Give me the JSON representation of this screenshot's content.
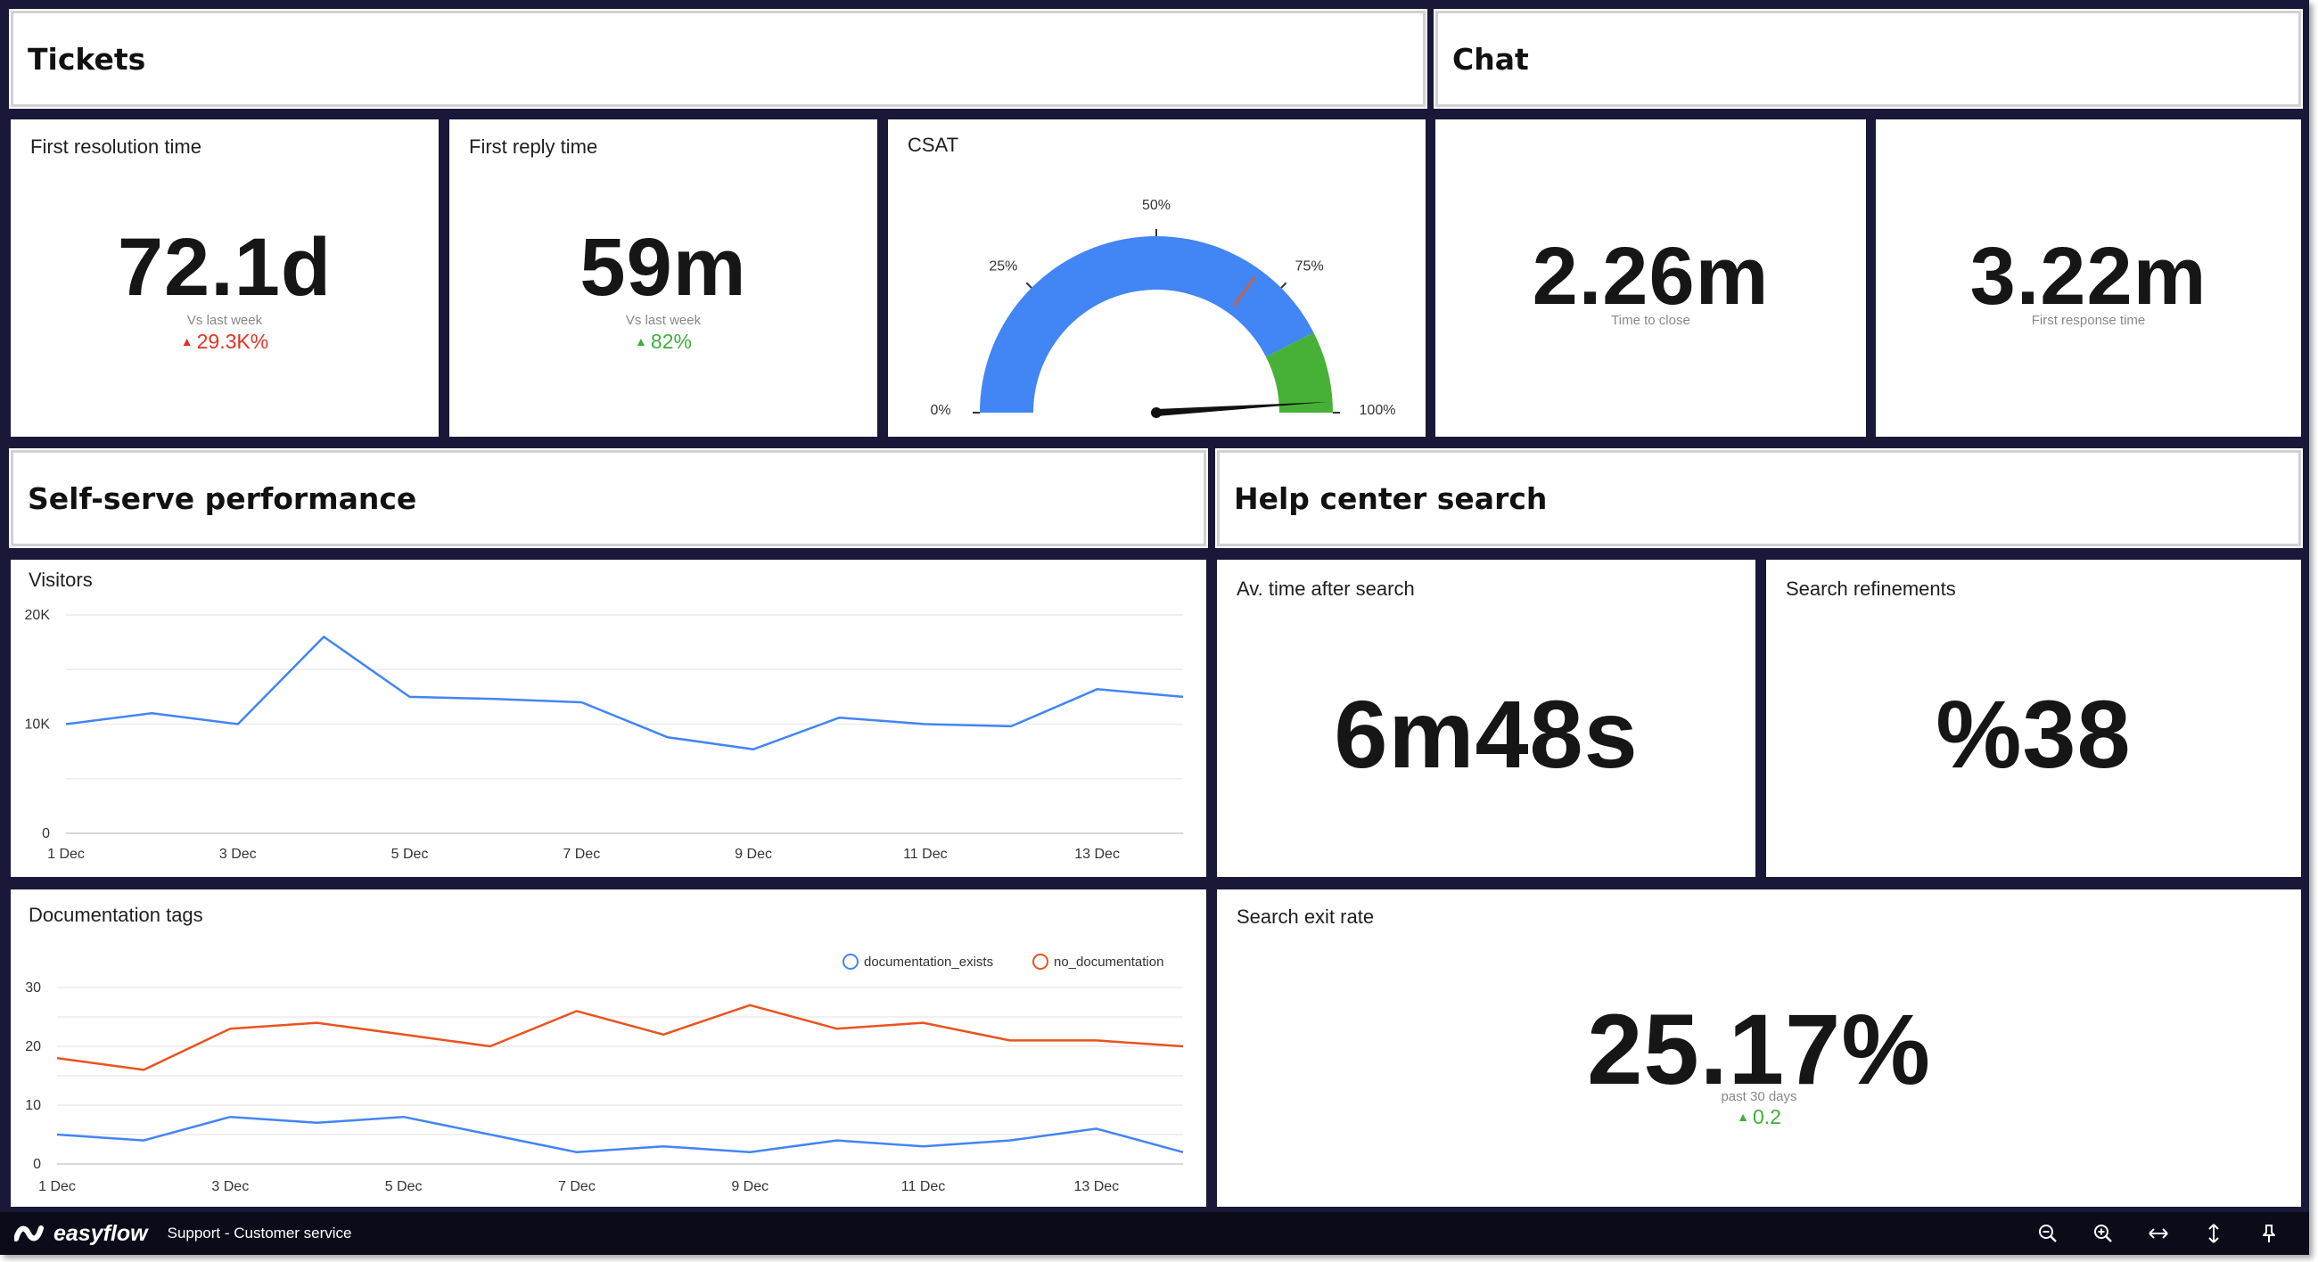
{
  "sections": {
    "tickets": "Tickets",
    "chat": "Chat",
    "self_serve": "Self-serve performance",
    "help_center": "Help center search"
  },
  "first_resolution": {
    "title": "First resolution time",
    "value": "72.1d",
    "sub": "Vs last week",
    "delta": "29.3K%",
    "delta_color": "#e03325"
  },
  "first_reply": {
    "title": "First reply time",
    "value": "59m",
    "sub": "Vs last week",
    "delta": "82%",
    "delta_color": "#3fae3c"
  },
  "csat": {
    "title": "CSAT",
    "ticks": [
      "0%",
      "25%",
      "50%",
      "75%",
      "100%"
    ],
    "value_percent": 98,
    "target_percent": 70,
    "green_from_percent": 85,
    "colors": {
      "main": "#4285f4",
      "good": "#47b137",
      "target": "#c0644a",
      "needle": "#111111"
    }
  },
  "time_to_close": {
    "value": "2.26m",
    "sub": "Time to close"
  },
  "first_response": {
    "value": "3.22m",
    "sub": "First response time"
  },
  "avg_time_after_search": {
    "title": "Av. time after search",
    "value": "6m48s"
  },
  "search_refinements": {
    "title": "Search refinements",
    "value": "%38"
  },
  "search_exit_rate": {
    "title": "Search exit rate",
    "value": "25.17%",
    "sub": "past 30 days",
    "delta": "0.2",
    "delta_color": "#3fae3c"
  },
  "footer": {
    "brand": "easyflow",
    "breadcrumb": "Support - Customer service",
    "icons": [
      "zoom-out-icon",
      "zoom-in-icon",
      "fit-width-icon",
      "fit-height-icon",
      "pin-icon"
    ]
  },
  "chart_data": [
    {
      "type": "line",
      "title": "Visitors",
      "x": [
        "1 Dec",
        "2 Dec",
        "3 Dec",
        "4 Dec",
        "5 Dec",
        "6 Dec",
        "7 Dec",
        "8 Dec",
        "9 Dec",
        "10 Dec",
        "11 Dec",
        "12 Dec",
        "13 Dec",
        "14 Dec"
      ],
      "x_tick_labels": [
        "1 Dec",
        "3 Dec",
        "5 Dec",
        "7 Dec",
        "9 Dec",
        "11 Dec",
        "13 Dec"
      ],
      "y_tick_labels": [
        "0",
        "10K",
        "20K"
      ],
      "ylim": [
        0,
        20000
      ],
      "grid": true,
      "series": [
        {
          "color": "#4285f4",
          "values": [
            10000,
            11000,
            10000,
            18000,
            12500,
            12300,
            12000,
            8800,
            7700,
            10600,
            10000,
            9800,
            13200,
            12500
          ]
        }
      ]
    },
    {
      "type": "line",
      "title": "Documentation tags",
      "x": [
        "1 Dec",
        "2 Dec",
        "3 Dec",
        "4 Dec",
        "5 Dec",
        "6 Dec",
        "7 Dec",
        "8 Dec",
        "9 Dec",
        "10 Dec",
        "11 Dec",
        "12 Dec",
        "13 Dec",
        "14 Dec"
      ],
      "x_tick_labels": [
        "1 Dec",
        "3 Dec",
        "5 Dec",
        "7 Dec",
        "9 Dec",
        "11 Dec",
        "13 Dec"
      ],
      "y_tick_labels": [
        "0",
        "10",
        "20",
        "30"
      ],
      "ylim": [
        0,
        30
      ],
      "grid": true,
      "legend": "top-right",
      "series": [
        {
          "name": "documentation_exists",
          "color": "#4285f4",
          "values": [
            5,
            4,
            8,
            7,
            8,
            5,
            2,
            3,
            2,
            4,
            3,
            4,
            6,
            2
          ]
        },
        {
          "name": "no_documentation",
          "color": "#e8541f",
          "values": [
            18,
            16,
            23,
            24,
            22,
            20,
            26,
            22,
            27,
            23,
            24,
            21,
            21,
            20
          ]
        }
      ]
    }
  ]
}
